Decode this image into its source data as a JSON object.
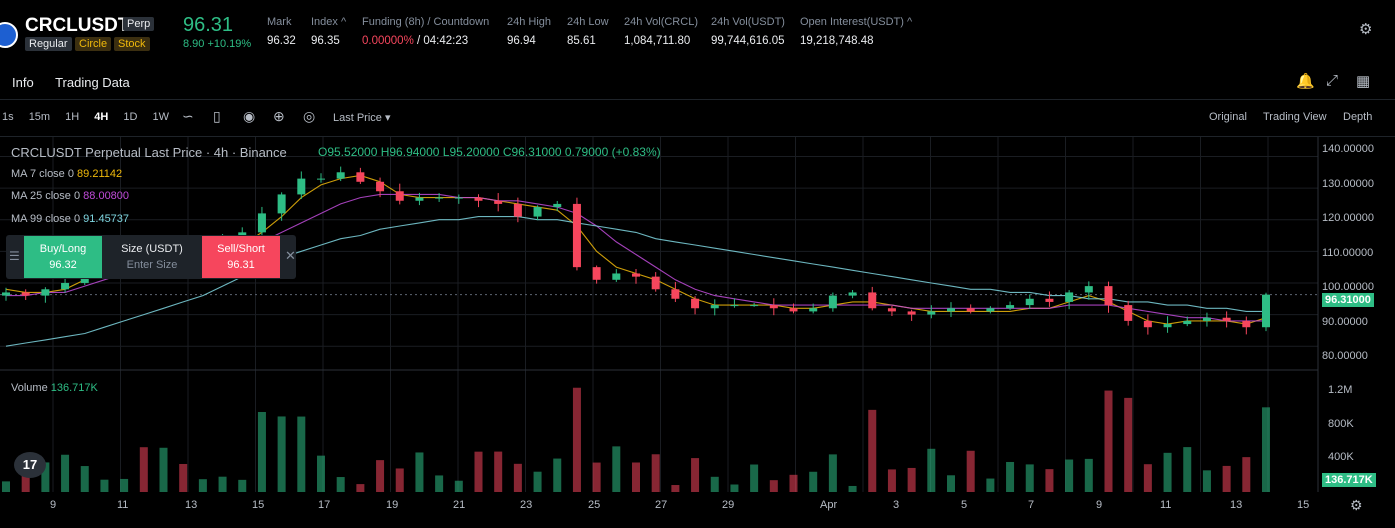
{
  "header": {
    "symbol": "CRCLUSDT",
    "contract_badge": "Perp",
    "tags": [
      "Regular",
      "Circle",
      "Stock"
    ],
    "last_price": "96.31",
    "change": "8.90 +10.19%",
    "stats": [
      {
        "label": "Mark",
        "value": "96.32"
      },
      {
        "label": "Index ^",
        "value": "96.35"
      },
      {
        "label": "Funding (8h) / Countdown",
        "value_a": "0.00000%",
        "value_b": " / 04:42:23"
      },
      {
        "label": "24h High",
        "value": "96.94"
      },
      {
        "label": "24h Low",
        "value": "85.61"
      },
      {
        "label": "24h Vol(CRCL)",
        "value": "1,084,711.80"
      },
      {
        "label": "24h Vol(USDT)",
        "value": "99,744,616.05"
      },
      {
        "label": "Open Interest(USDT) ^",
        "value": "19,218,748.48"
      }
    ]
  },
  "subnav": {
    "tabs": [
      "Info",
      "Trading Data"
    ]
  },
  "toolbar": {
    "intervals": [
      "1s",
      "15m",
      "1H",
      "4H",
      "1D",
      "1W"
    ],
    "active_interval": "4H",
    "price_type": "Last Price ▾",
    "views": [
      "Original",
      "Trading View",
      "Depth"
    ],
    "active_view": "Trading View"
  },
  "chart": {
    "title": "CRCLUSDT Perpetual Last Price · 4h · Binance",
    "ohlc": "O95.52000  H96.94000  L95.20000  C96.31000  0.79000 (+0.83%)",
    "ma": [
      {
        "label": "MA 7 close 0",
        "value": "89.21142",
        "color": "#f0b90b"
      },
      {
        "label": "MA 25 close 0",
        "value": "88.00800",
        "color": "#c04bd9"
      },
      {
        "label": "MA 99 close 0",
        "value": "91.45737",
        "color": "#7fd6e0"
      }
    ],
    "volume_label": "Volume",
    "volume_value": "136.717K",
    "price_axis": [
      "140.00000",
      "130.00000",
      "120.00000",
      "110.00000",
      "100.00000",
      "90.00000",
      "80.00000"
    ],
    "last_price_tag": "96.31000",
    "volume_axis": [
      "1.2M",
      "800K",
      "400K"
    ],
    "volume_tag": "136.717K",
    "date_axis": [
      "9",
      "11",
      "13",
      "15",
      "17",
      "19",
      "21",
      "23",
      "25",
      "27",
      "29",
      "Apr",
      "3",
      "5",
      "7",
      "9",
      "11",
      "13",
      "15"
    ]
  },
  "trade_panel": {
    "buy_label": "Buy/Long",
    "buy_price": "96.32",
    "size_label": "Size (USDT)",
    "size_placeholder": "Enter Size",
    "sell_label": "Sell/Short",
    "sell_price": "96.31"
  },
  "colors": {
    "up": "#2ebd85",
    "down": "#f6465d",
    "ma7": "#f0b90b",
    "ma25": "#c04bd9",
    "ma99": "#7fd6e0"
  },
  "chart_data": {
    "type": "candlestick",
    "interval": "4h",
    "ylim": [
      75,
      143
    ],
    "series": [
      {
        "name": "MA 7 close 0",
        "values": [
          98,
          97,
          97,
          98,
          101,
          104,
          107,
          108,
          109,
          109,
          110,
          111,
          112,
          116,
          121,
          127,
          131,
          133,
          134,
          132,
          128,
          127,
          127,
          127,
          127,
          126,
          125,
          124,
          123,
          118,
          110,
          105,
          103,
          101,
          98,
          95,
          93,
          93,
          93,
          93,
          92,
          92,
          93,
          94,
          94,
          93,
          92,
          91,
          91,
          91,
          91,
          91,
          92,
          92,
          94,
          96,
          94,
          91,
          88,
          87,
          88,
          88,
          88,
          87,
          89
        ]
      },
      {
        "name": "MA 25 close 0",
        "values": [
          96,
          96,
          97,
          97,
          99,
          101,
          103,
          105,
          106,
          108,
          109,
          110,
          111,
          113,
          116,
          119,
          122,
          125,
          127,
          128,
          128,
          128,
          128,
          127,
          127,
          126,
          126,
          125,
          124,
          122,
          118,
          113,
          109,
          105,
          101,
          98,
          96,
          95,
          94,
          93,
          93,
          93,
          93,
          93,
          93,
          93,
          92,
          92,
          92,
          92,
          92,
          92,
          92,
          92,
          93,
          93,
          93,
          92,
          91,
          90,
          89,
          89,
          88,
          88,
          88
        ]
      },
      {
        "name": "MA 99 close 0",
        "values": [
          80,
          81,
          82,
          83,
          84,
          86,
          88,
          90,
          92,
          94,
          96,
          99,
          102,
          105,
          108,
          110,
          112,
          114,
          115,
          117,
          118,
          119,
          120,
          120,
          121,
          121,
          121,
          120,
          120,
          119,
          118,
          117,
          116,
          114,
          113,
          112,
          111,
          110,
          109,
          108,
          107,
          106,
          105,
          104,
          103,
          102,
          101,
          100,
          99,
          98,
          98,
          97,
          97,
          96,
          96,
          95,
          95,
          94,
          94,
          93,
          93,
          92,
          92,
          91,
          91
        ]
      }
    ],
    "candles_summary": {
      "start_close": 97,
      "peak_high": 136,
      "low": 84,
      "last_close": 96.31
    },
    "closes": [
      97,
      96,
      98,
      100,
      104,
      106,
      109,
      108,
      111,
      110,
      112,
      113,
      116,
      122,
      128,
      133,
      133,
      135,
      132,
      129,
      126,
      127,
      127,
      127,
      126,
      125,
      121,
      124,
      125,
      105,
      101,
      103,
      102,
      98,
      95,
      92,
      93,
      93,
      93,
      92,
      91,
      92,
      96,
      97,
      92,
      91,
      90,
      91,
      92,
      91,
      92,
      93,
      95,
      94,
      97,
      99,
      93,
      88,
      86,
      87,
      88,
      89,
      88,
      86,
      96.31
    ]
  }
}
